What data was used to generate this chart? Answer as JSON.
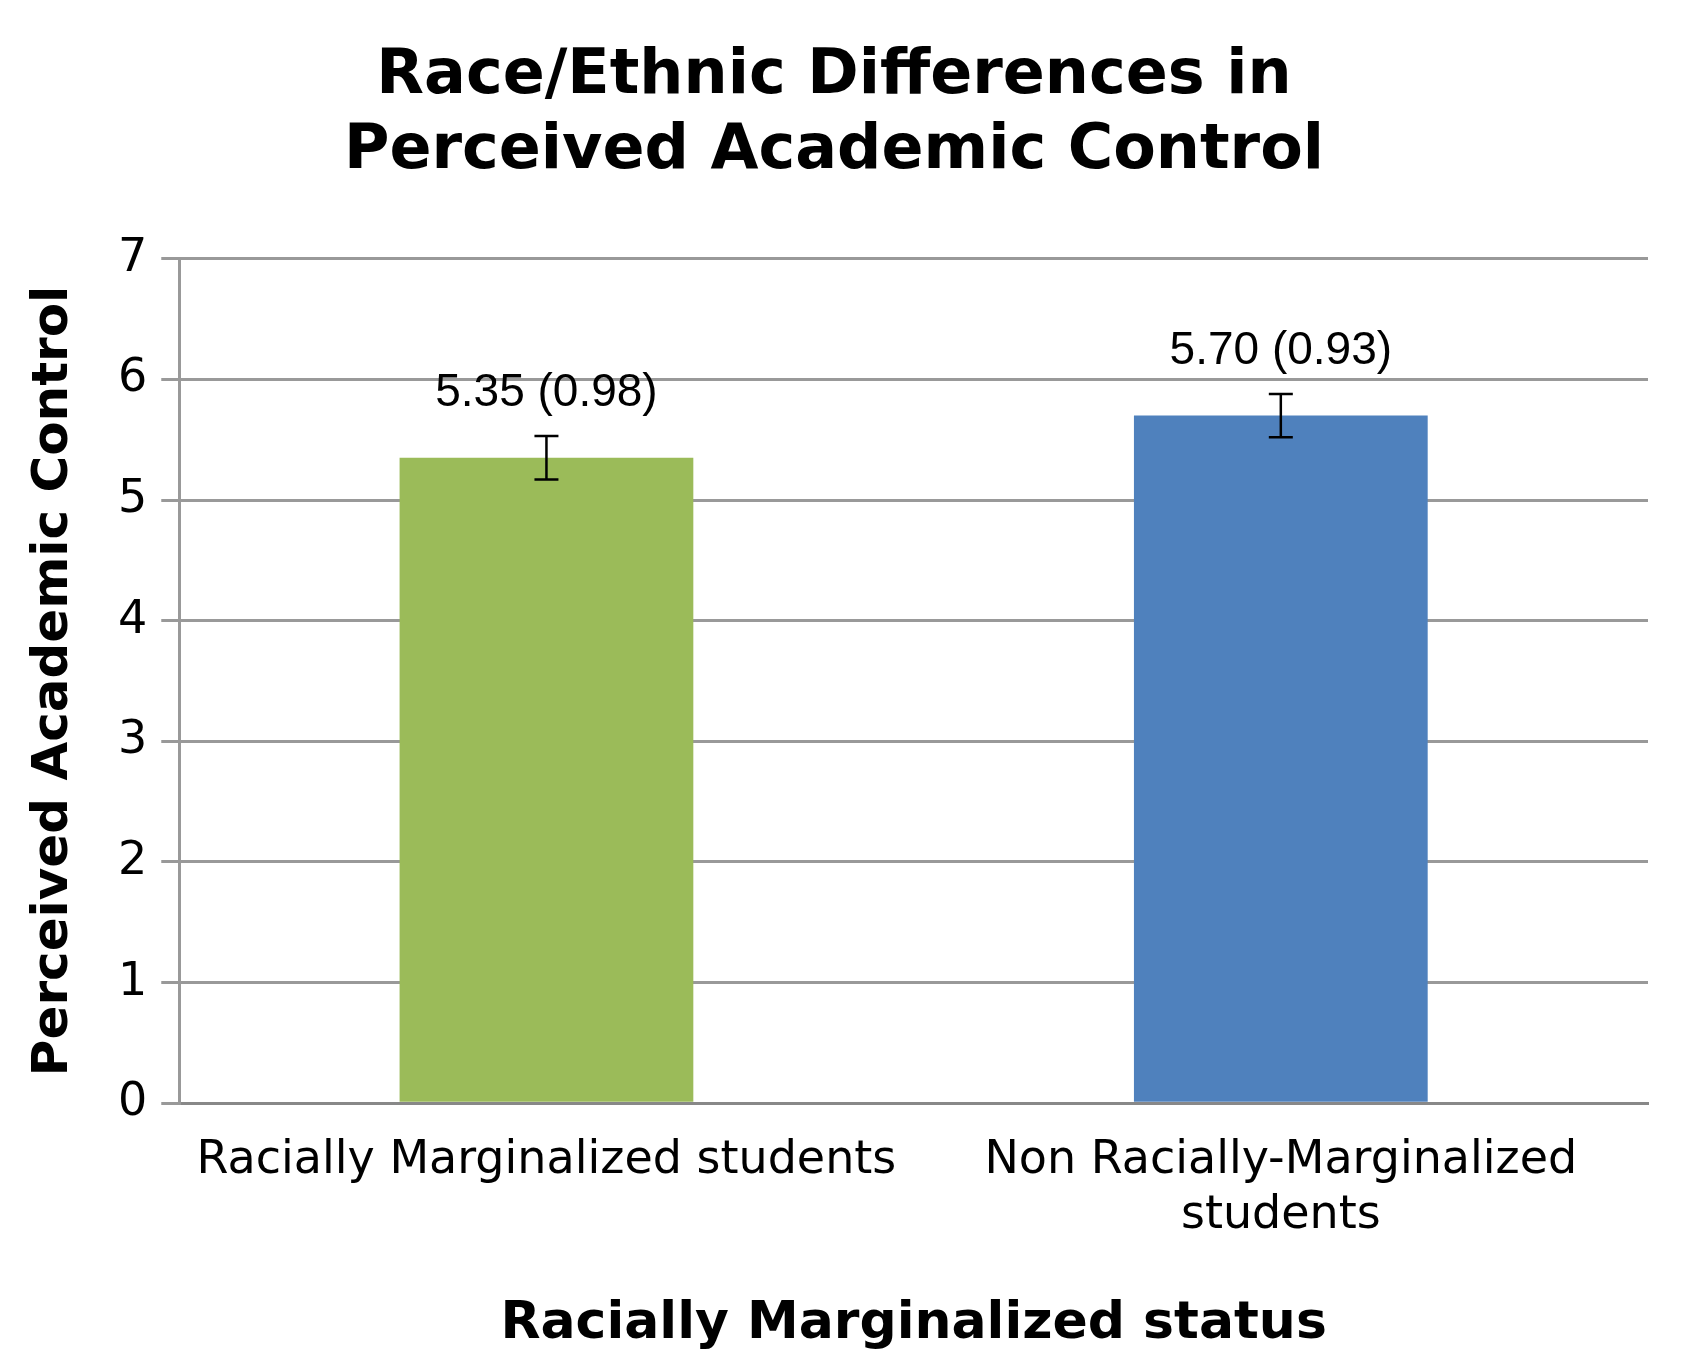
{
  "chart_data": {
    "type": "bar",
    "title": "Race/Ethnic Differences in Perceived Academic Control",
    "xlabel": "Racially Marginalized status",
    "ylabel": "Perceived Academic Control",
    "categories": [
      "Racially Marginalized students",
      "Non Racially-Marginalized students"
    ],
    "values": [
      5.35,
      5.7
    ],
    "colors": [
      "#9bbb59",
      "#4f81bd"
    ],
    "errors": [
      0.18,
      0.18
    ],
    "value_labels": [
      "5.35 (0.98)",
      "5.70 (0.93)"
    ],
    "ylim": [
      0,
      7
    ],
    "yticks": [
      0,
      1,
      2,
      3,
      4,
      5,
      6,
      7
    ],
    "grid": "y",
    "legend": false
  }
}
